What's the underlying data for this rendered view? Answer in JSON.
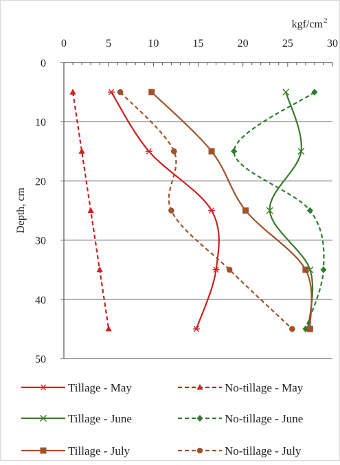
{
  "chart_data": {
    "type": "line",
    "x_axis": {
      "label": "kgf/cm",
      "label_superscript": "2",
      "position": "top",
      "range": [
        0,
        30
      ],
      "ticks": [
        0,
        5,
        10,
        15,
        20,
        25,
        30
      ],
      "tick_labels": [
        "0",
        "5",
        "10",
        "15",
        "20",
        "25",
        "30"
      ]
    },
    "y_axis": {
      "label": "Depth, cm",
      "inverted": true,
      "range": [
        0,
        50
      ],
      "ticks": [
        0,
        10,
        20,
        30,
        40,
        50
      ],
      "tick_labels": [
        "0",
        "10",
        "20",
        "30",
        "40",
        "50"
      ]
    },
    "grid": "horizontal",
    "legend_position": "bottom",
    "series": [
      {
        "name": "Tillage - May",
        "color": "#cc2222",
        "dash": "solid",
        "marker": "asterisk",
        "points": [
          {
            "x": 5.3,
            "y": 5
          },
          {
            "x": 9.5,
            "y": 15
          },
          {
            "x": 16.5,
            "y": 25
          },
          {
            "x": 17,
            "y": 35
          },
          {
            "x": 14.8,
            "y": 45
          }
        ]
      },
      {
        "name": "No-tillage - May",
        "color": "#cc2222",
        "dash": "dashed",
        "marker": "triangle",
        "points": [
          {
            "x": 1,
            "y": 5
          },
          {
            "x": 2,
            "y": 15
          },
          {
            "x": 3,
            "y": 25
          },
          {
            "x": 4,
            "y": 35
          },
          {
            "x": 5,
            "y": 45
          }
        ]
      },
      {
        "name": "Tillage - June",
        "color": "#3a7a2a",
        "dash": "solid",
        "marker": "x",
        "points": [
          {
            "x": 24.8,
            "y": 5
          },
          {
            "x": 26.5,
            "y": 15
          },
          {
            "x": 23,
            "y": 25
          },
          {
            "x": 27.5,
            "y": 35
          },
          {
            "x": 27.3,
            "y": 45
          }
        ]
      },
      {
        "name": "No-tillage - June",
        "color": "#2e7d32",
        "dash": "dashed",
        "marker": "diamond",
        "points": [
          {
            "x": 28,
            "y": 5
          },
          {
            "x": 19,
            "y": 15
          },
          {
            "x": 27.5,
            "y": 25
          },
          {
            "x": 29,
            "y": 35
          },
          {
            "x": 27,
            "y": 45
          }
        ]
      },
      {
        "name": "Tillage - July",
        "color": "#a0522d",
        "dash": "solid",
        "marker": "square",
        "points": [
          {
            "x": 9.8,
            "y": 5
          },
          {
            "x": 16.5,
            "y": 15
          },
          {
            "x": 20.3,
            "y": 25
          },
          {
            "x": 27,
            "y": 35
          },
          {
            "x": 27.5,
            "y": 45
          }
        ]
      },
      {
        "name": "No-tillage - July",
        "color": "#a0522d",
        "dash": "dashed",
        "marker": "circle",
        "points": [
          {
            "x": 6.3,
            "y": 5
          },
          {
            "x": 12.3,
            "y": 15
          },
          {
            "x": 12,
            "y": 25
          },
          {
            "x": 18.5,
            "y": 35
          },
          {
            "x": 25.5,
            "y": 45
          }
        ]
      }
    ]
  }
}
